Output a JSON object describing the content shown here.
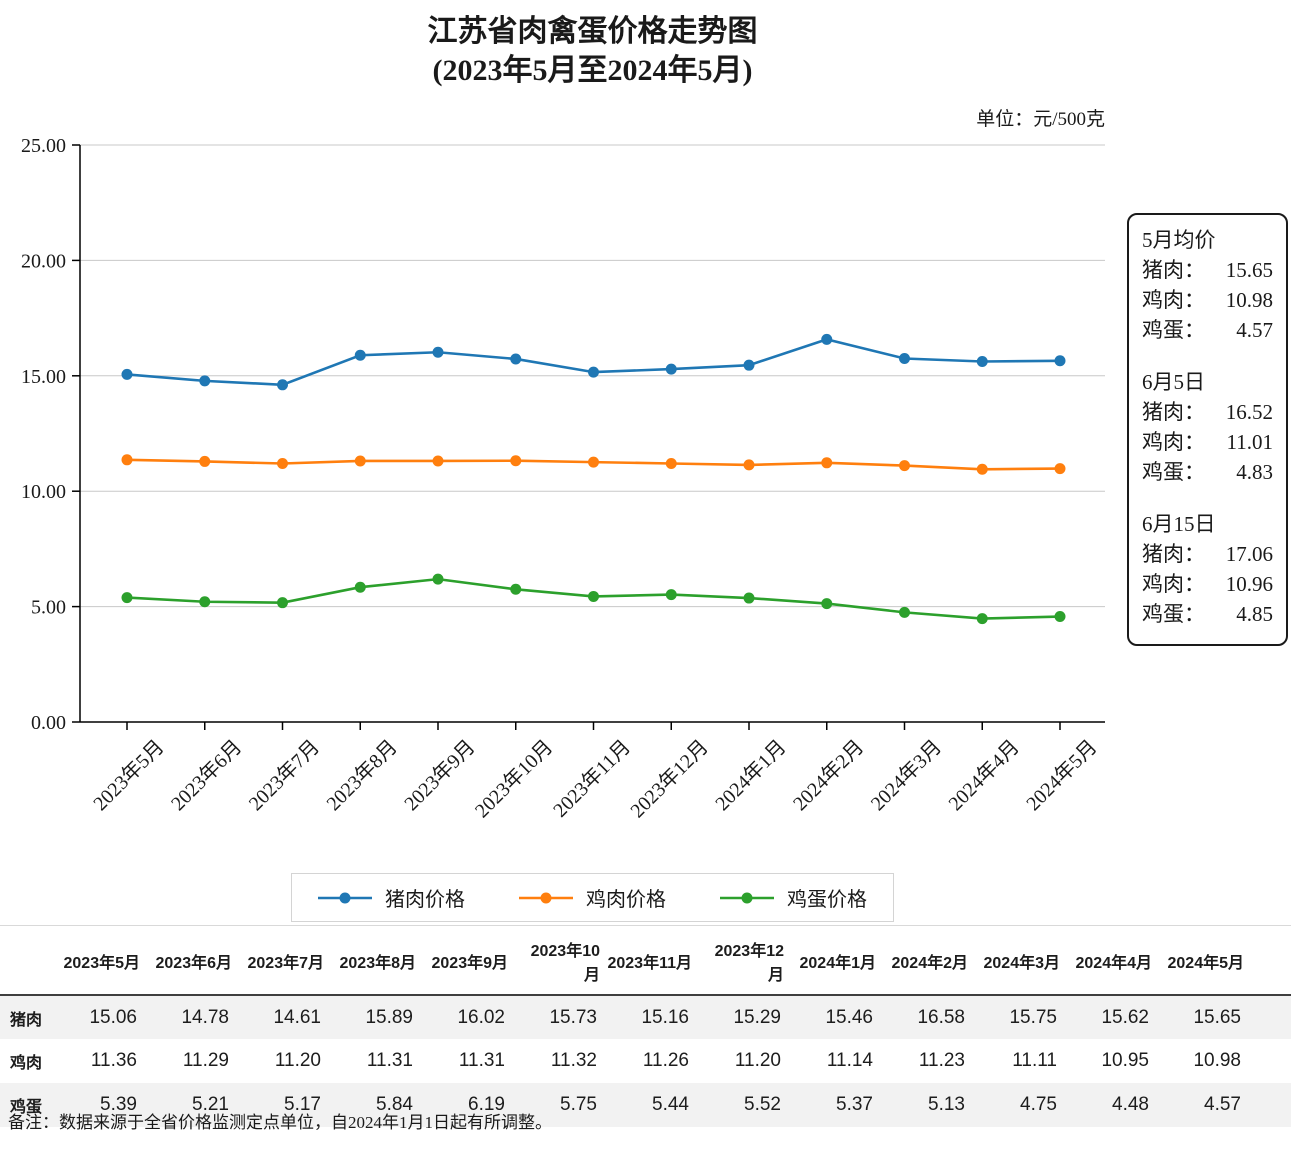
{
  "chart_data": {
    "type": "line",
    "title": "江苏省肉禽蛋价格走势图",
    "subtitle": "(2023年5月至2024年5月)",
    "unit": "单位：元/500克",
    "categories": [
      "2023年5月",
      "2023年6月",
      "2023年7月",
      "2023年8月",
      "2023年9月",
      "2023年10月",
      "2023年11月",
      "2023年12月",
      "2024年1月",
      "2024年2月",
      "2024年3月",
      "2024年4月",
      "2024年5月"
    ],
    "series": [
      {
        "name": "猪肉价格",
        "color": "#1f77b4",
        "values": [
          15.06,
          14.78,
          14.61,
          15.89,
          16.02,
          15.73,
          15.16,
          15.29,
          15.46,
          16.58,
          15.75,
          15.62,
          15.65
        ]
      },
      {
        "name": "鸡肉价格",
        "color": "#ff7f0e",
        "values": [
          11.36,
          11.29,
          11.2,
          11.31,
          11.31,
          11.32,
          11.26,
          11.2,
          11.14,
          11.23,
          11.11,
          10.95,
          10.98
        ]
      },
      {
        "name": "鸡蛋价格",
        "color": "#2ca02c",
        "values": [
          5.39,
          5.21,
          5.17,
          5.84,
          6.19,
          5.75,
          5.44,
          5.52,
          5.37,
          5.13,
          4.75,
          4.48,
          4.57
        ]
      }
    ],
    "ylim": [
      0,
      25
    ],
    "yticks": [
      "0.00",
      "5.00",
      "10.00",
      "15.00",
      "20.00",
      "25.00"
    ],
    "grid": true,
    "legend_position": "bottom"
  },
  "summary_box": {
    "sections": [
      {
        "heading": "5月均价",
        "rows": [
          {
            "label": "猪肉：",
            "value": "15.65"
          },
          {
            "label": "鸡肉：",
            "value": "10.98"
          },
          {
            "label": "鸡蛋：",
            "value": "4.57"
          }
        ]
      },
      {
        "heading": "6月5日",
        "rows": [
          {
            "label": "猪肉：",
            "value": "16.52"
          },
          {
            "label": "鸡肉：",
            "value": "11.01"
          },
          {
            "label": "鸡蛋：",
            "value": "4.83"
          }
        ]
      },
      {
        "heading": "6月15日",
        "rows": [
          {
            "label": "猪肉：",
            "value": "17.06"
          },
          {
            "label": "鸡肉：",
            "value": "10.96"
          },
          {
            "label": "鸡蛋：",
            "value": "4.85"
          }
        ]
      }
    ]
  },
  "table": {
    "row_labels": [
      "猪肉",
      "鸡肉",
      "鸡蛋"
    ],
    "columns": [
      "2023年5月",
      "2023年6月",
      "2023年7月",
      "2023年8月",
      "2023年9月",
      "2023年10月",
      "2023年11月",
      "2023年12月",
      "2024年1月",
      "2024年2月",
      "2024年3月",
      "2024年4月",
      "2024年5月"
    ],
    "rows": [
      [
        "15.06",
        "14.78",
        "14.61",
        "15.89",
        "16.02",
        "15.73",
        "15.16",
        "15.29",
        "15.46",
        "16.58",
        "15.75",
        "15.62",
        "15.65"
      ],
      [
        "11.36",
        "11.29",
        "11.20",
        "11.31",
        "11.31",
        "11.32",
        "11.26",
        "11.20",
        "11.14",
        "11.23",
        "11.11",
        "10.95",
        "10.98"
      ],
      [
        "5.39",
        "5.21",
        "5.17",
        "5.84",
        "6.19",
        "5.75",
        "5.44",
        "5.52",
        "5.37",
        "5.13",
        "4.75",
        "4.48",
        "4.57"
      ]
    ]
  },
  "note": "备注：数据来源于全省价格监测定点单位，自2024年1月1日起有所调整。"
}
